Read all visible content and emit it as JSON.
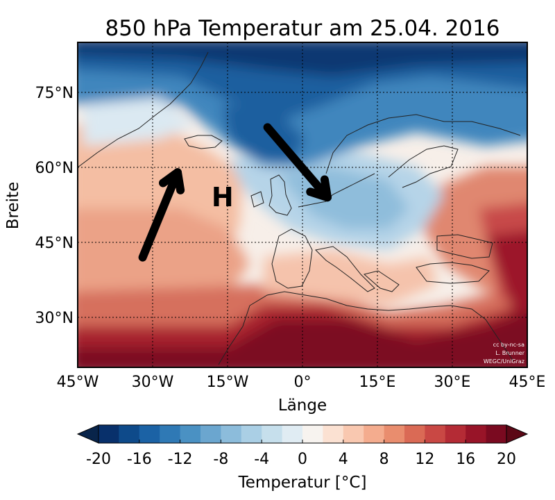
{
  "title": "850 hPa Temperatur am 25.04. 2016",
  "map": {
    "x_label": "Länge",
    "y_label": "Breite",
    "x_ticks": [
      {
        "lon": -45,
        "label": "45°W"
      },
      {
        "lon": -30,
        "label": "30°W"
      },
      {
        "lon": -15,
        "label": "15°W"
      },
      {
        "lon": 0,
        "label": "0°"
      },
      {
        "lon": 15,
        "label": "15°E"
      },
      {
        "lon": 30,
        "label": "30°E"
      },
      {
        "lon": 45,
        "label": "45°E"
      }
    ],
    "y_ticks": [
      {
        "lat": 75,
        "label": "75°N"
      },
      {
        "lat": 60,
        "label": "60°N"
      },
      {
        "lat": 45,
        "label": "45°N"
      },
      {
        "lat": 30,
        "label": "30°N"
      }
    ],
    "lon_range": [
      -45,
      45
    ],
    "lat_range": [
      20,
      85
    ],
    "grid": "dotted",
    "pressure_marker": {
      "label": "H",
      "lon": -16,
      "lat": 54
    },
    "arrows": [
      {
        "name": "warm-air-advection-arrow",
        "from": {
          "lon": -32,
          "lat": 42
        },
        "to": {
          "lon": -25,
          "lat": 59
        }
      },
      {
        "name": "cold-air-advection-arrow",
        "from": {
          "lon": -7,
          "lat": 68
        },
        "to": {
          "lon": 5,
          "lat": 54
        }
      }
    ],
    "credit_lines": [
      "cc by-nc-sa",
      "L. Brunner",
      "WEGC/UniGraz"
    ]
  },
  "colorbar": {
    "label": "Temperatur [°C]",
    "ticks": [
      "-20",
      "-16",
      "-12",
      "-8",
      "-4",
      "0",
      "4",
      "8",
      "12",
      "16",
      "20"
    ],
    "min": -20,
    "max": 20,
    "step": 2,
    "extend": "both",
    "colors": [
      "#08306b",
      "#0e4a8a",
      "#1b62a5",
      "#2f79b5",
      "#4a91c3",
      "#6ba6cf",
      "#8cbcdb",
      "#aacfe5",
      "#c6dfec",
      "#e0ecf3",
      "#f7f3ef",
      "#fbe1d2",
      "#f9c8b0",
      "#f4ac8e",
      "#e98d6e",
      "#da6a55",
      "#c94844",
      "#b42b35",
      "#981428",
      "#7a0a20"
    ],
    "under_color": "#08244a",
    "over_color": "#5c0816"
  }
}
